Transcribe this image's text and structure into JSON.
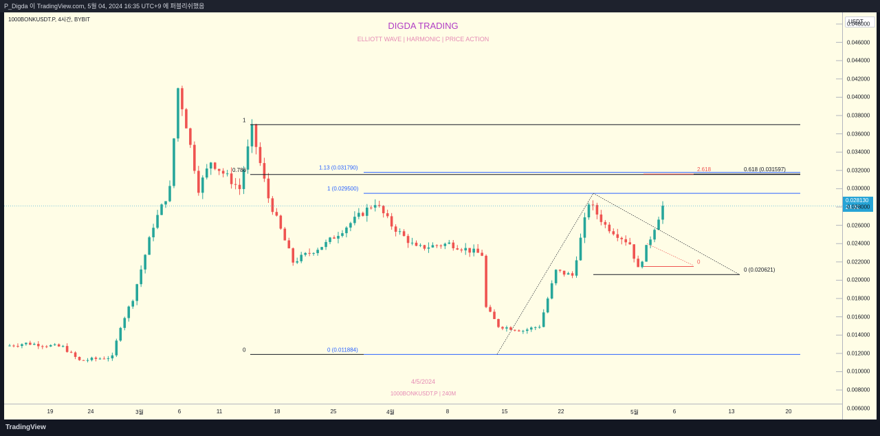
{
  "topbar": {
    "text": "P_Digda 이 TradingView.com, 5월 04, 2024 16:35 UTC+9 에 퍼블리쉬했음"
  },
  "symbol_line": "1000BONKUSDT.P, 4시간, BYBIT",
  "bottom": {
    "logo": "TradingView"
  },
  "currency": "USDT",
  "current_price": {
    "value": "0.028130",
    "countdown": "24:32"
  },
  "title": "DIGDA TRADING",
  "subtitle": "ELLIOTT WAVE   |   HARMONIC   |   PRICE ACTION",
  "watermark_date": "4/5/2024",
  "watermark_symbol": "1000BONKUSDT.P  |  240M",
  "colors": {
    "up": "#26a69a",
    "down": "#ef5350",
    "blue": "#2962ff",
    "title": "#b03cc4",
    "pink": "#e58ab4"
  },
  "chart_data": {
    "type": "candlestick",
    "x_ticks": [
      "19",
      "24",
      "3월",
      "6",
      "11",
      "18",
      "25",
      "4월",
      "8",
      "15",
      "22",
      "5월",
      "6",
      "13",
      "20"
    ],
    "y_ticks": [
      "0.048000",
      "0.046000",
      "0.044000",
      "0.042000",
      "0.040000",
      "0.038000",
      "0.036000",
      "0.034000",
      "0.032000",
      "0.030000",
      "0.028000",
      "0.026000",
      "0.024000",
      "0.022000",
      "0.020000",
      "0.018000",
      "0.016000",
      "0.014000",
      "0.012000",
      "0.010000",
      "0.008000",
      "0.006000"
    ],
    "ylim": [
      0.005,
      0.0495
    ],
    "price_path": [
      {
        "x": 0,
        "y": 0.0128
      },
      {
        "x": 5,
        "y": 0.0131
      },
      {
        "x": 14,
        "y": 0.0127
      },
      {
        "x": 18,
        "y": 0.0112
      },
      {
        "x": 26,
        "y": 0.0116
      },
      {
        "x": 28,
        "y": 0.015
      },
      {
        "x": 31,
        "y": 0.018
      },
      {
        "x": 36,
        "y": 0.026
      },
      {
        "x": 40,
        "y": 0.03
      },
      {
        "x": 42,
        "y": 0.041
      },
      {
        "x": 44,
        "y": 0.037
      },
      {
        "x": 47,
        "y": 0.03
      },
      {
        "x": 50,
        "y": 0.033
      },
      {
        "x": 57,
        "y": 0.03
      },
      {
        "x": 60,
        "y": 0.0365
      },
      {
        "x": 64,
        "y": 0.029
      },
      {
        "x": 70,
        "y": 0.022
      },
      {
        "x": 78,
        "y": 0.024
      },
      {
        "x": 86,
        "y": 0.027
      },
      {
        "x": 90,
        "y": 0.0285
      },
      {
        "x": 94,
        "y": 0.026
      },
      {
        "x": 100,
        "y": 0.0235
      },
      {
        "x": 108,
        "y": 0.024
      },
      {
        "x": 116,
        "y": 0.0228
      },
      {
        "x": 117,
        "y": 0.017
      },
      {
        "x": 120,
        "y": 0.015
      },
      {
        "x": 126,
        "y": 0.0145
      },
      {
        "x": 130,
        "y": 0.015
      },
      {
        "x": 134,
        "y": 0.021
      },
      {
        "x": 138,
        "y": 0.0205
      },
      {
        "x": 142,
        "y": 0.0285
      },
      {
        "x": 146,
        "y": 0.026
      },
      {
        "x": 152,
        "y": 0.024
      },
      {
        "x": 154,
        "y": 0.0212
      },
      {
        "x": 160,
        "y": 0.0281
      }
    ],
    "levels": [
      {
        "label": "1",
        "price": 0.037
      },
      {
        "label": "0.786",
        "price": 0.03155
      },
      {
        "label": "1.13 (0.031790)",
        "price": 0.03179
      },
      {
        "label": "1 (0.029500)",
        "price": 0.0295
      },
      {
        "label": "0 (0.011884)",
        "price": 0.011884
      },
      {
        "label": "0",
        "price": 0.011884
      },
      {
        "label": "2.618",
        "price": 0.0316
      },
      {
        "label": "0.618 (0.031597)",
        "price": 0.031597
      },
      {
        "label": "0 (0.020621)",
        "price": 0.020621
      },
      {
        "label": "0",
        "price": 0.0215
      }
    ]
  }
}
